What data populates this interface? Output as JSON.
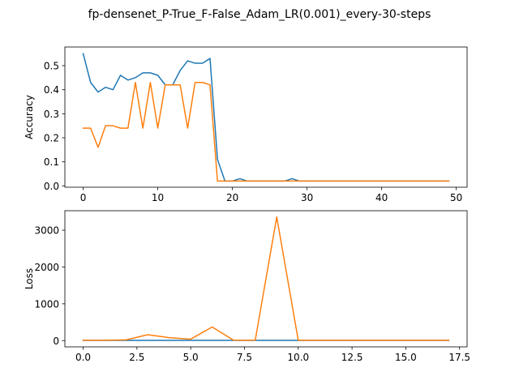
{
  "figure": {
    "title": "fp-densenet_P-True_F-False_Adam_LR(0.001)_every-30-steps"
  },
  "colors": {
    "series_blue": "#1f77b4",
    "series_orange": "#ff7f0e",
    "axes": "#000000",
    "background": "#ffffff"
  },
  "chart_data": [
    {
      "type": "line",
      "title": "",
      "xlabel": "",
      "ylabel": "Accuracy",
      "xlim": [
        -2.45,
        51.45
      ],
      "ylim": [
        -0.0055,
        0.5775
      ],
      "xticks": [
        0,
        10,
        20,
        30,
        40,
        50
      ],
      "xtick_labels": [
        "0",
        "10",
        "20",
        "30",
        "40",
        "50"
      ],
      "yticks": [
        0.0,
        0.1,
        0.2,
        0.3,
        0.4,
        0.5
      ],
      "ytick_labels": [
        "0.0",
        "0.1",
        "0.2",
        "0.3",
        "0.4",
        "0.5"
      ],
      "grid": false,
      "legend": "none",
      "series": [
        {
          "color": "#1f77b4",
          "x": [
            0,
            1,
            2,
            3,
            4,
            5,
            6,
            7,
            8,
            9,
            10,
            11,
            12,
            13,
            14,
            15,
            16,
            17,
            18,
            19,
            20,
            21,
            22,
            23,
            24,
            25,
            26,
            27,
            28,
            29,
            30,
            31,
            32,
            33,
            34,
            35,
            36,
            37,
            38,
            39,
            40,
            41,
            42,
            43,
            44,
            45,
            46,
            47,
            48,
            49
          ],
          "values": [
            0.55,
            0.43,
            0.39,
            0.41,
            0.4,
            0.46,
            0.44,
            0.45,
            0.47,
            0.47,
            0.46,
            0.42,
            0.42,
            0.48,
            0.52,
            0.51,
            0.51,
            0.53,
            0.11,
            0.02,
            0.02,
            0.03,
            0.02,
            0.02,
            0.02,
            0.02,
            0.02,
            0.02,
            0.03,
            0.02,
            0.02,
            0.02,
            0.02,
            0.02,
            0.02,
            0.02,
            0.02,
            0.02,
            0.02,
            0.02,
            0.02,
            0.02,
            0.02,
            0.02,
            0.02,
            0.02,
            0.02,
            0.02,
            0.02,
            0.02
          ]
        },
        {
          "color": "#ff7f0e",
          "x": [
            0,
            1,
            2,
            3,
            4,
            5,
            6,
            7,
            8,
            9,
            10,
            11,
            12,
            13,
            14,
            15,
            16,
            17,
            18,
            19,
            20,
            21,
            22,
            23,
            24,
            25,
            26,
            27,
            28,
            29,
            30,
            31,
            32,
            33,
            34,
            35,
            36,
            37,
            38,
            39,
            40,
            41,
            42,
            43,
            44,
            45,
            46,
            47,
            48,
            49
          ],
          "values": [
            0.24,
            0.24,
            0.16,
            0.25,
            0.25,
            0.24,
            0.24,
            0.43,
            0.24,
            0.43,
            0.24,
            0.42,
            0.42,
            0.42,
            0.24,
            0.43,
            0.43,
            0.42,
            0.02,
            0.02,
            0.02,
            0.02,
            0.02,
            0.02,
            0.02,
            0.02,
            0.02,
            0.02,
            0.02,
            0.02,
            0.02,
            0.02,
            0.02,
            0.02,
            0.02,
            0.02,
            0.02,
            0.02,
            0.02,
            0.02,
            0.02,
            0.02,
            0.02,
            0.02,
            0.02,
            0.02,
            0.02,
            0.02,
            0.02,
            0.02
          ]
        }
      ]
    },
    {
      "type": "line",
      "title": "",
      "xlabel": "",
      "ylabel": "Loss",
      "xlim": [
        -0.85,
        17.85
      ],
      "ylim": [
        -170,
        3530
      ],
      "xticks": [
        0,
        2.5,
        5,
        7.5,
        10,
        12.5,
        15,
        17.5
      ],
      "xtick_labels": [
        "0.0",
        "2.5",
        "5.0",
        "7.5",
        "10.0",
        "12.5",
        "15.0",
        "17.5"
      ],
      "yticks": [
        0,
        1000,
        2000,
        3000
      ],
      "ytick_labels": [
        "0",
        "1000",
        "2000",
        "3000"
      ],
      "grid": false,
      "legend": "none",
      "series": [
        {
          "color": "#1f77b4",
          "x": [
            0,
            1,
            2,
            3,
            4,
            5,
            6,
            7,
            8,
            9,
            10,
            11,
            12,
            13,
            14,
            15,
            16,
            17
          ],
          "values": [
            5,
            5,
            5,
            5,
            5,
            5,
            5,
            5,
            5,
            5,
            5,
            5,
            5,
            5,
            5,
            5,
            5,
            5
          ]
        },
        {
          "color": "#ff7f0e",
          "x": [
            0,
            1,
            2,
            3,
            4,
            5,
            6,
            7,
            8,
            9,
            10,
            11,
            12,
            13,
            14,
            15,
            16,
            17
          ],
          "values": [
            10,
            10,
            20,
            160,
            80,
            40,
            370,
            10,
            10,
            3360,
            10,
            10,
            10,
            10,
            10,
            10,
            10,
            10
          ]
        }
      ]
    }
  ]
}
